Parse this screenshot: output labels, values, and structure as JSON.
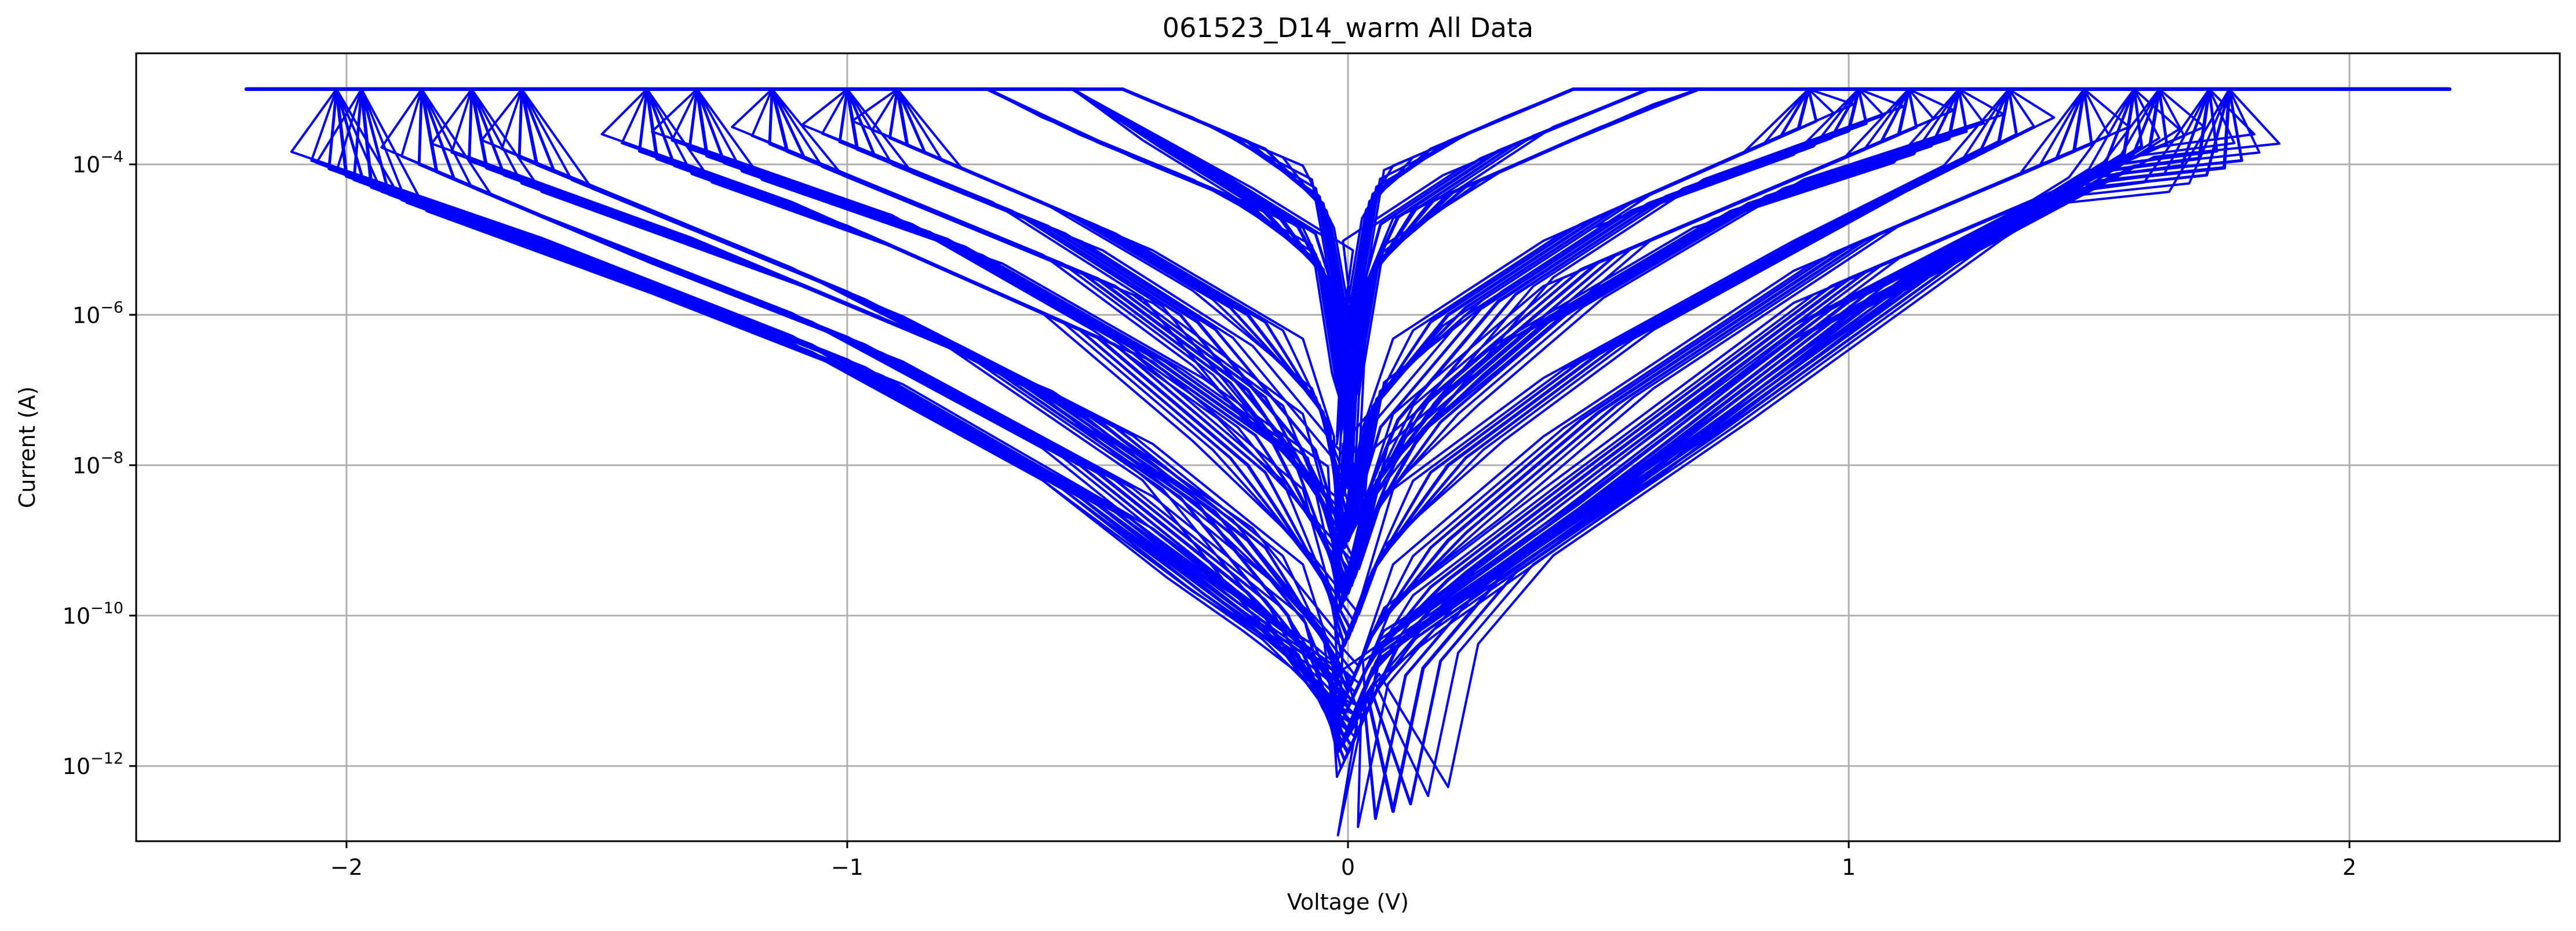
{
  "chart_data": {
    "type": "line",
    "title": "061523_D14_warm All Data",
    "xlabel": "Voltage (V)",
    "ylabel": "Current (A)",
    "yscale": "log",
    "xlim": [
      -2.42,
      2.42
    ],
    "ylim": [
      1e-13,
      0.003
    ],
    "grid": true,
    "x_ticks": [
      {
        "value": -2,
        "label": "−2"
      },
      {
        "value": -1,
        "label": "−1"
      },
      {
        "value": 0,
        "label": "0"
      },
      {
        "value": 1,
        "label": "1"
      },
      {
        "value": 2,
        "label": "2"
      }
    ],
    "y_ticks": [
      {
        "value": 1e-12,
        "base": "10",
        "exp": "−12"
      },
      {
        "value": 1e-10,
        "base": "10",
        "exp": "−10"
      },
      {
        "value": 1e-08,
        "base": "10",
        "exp": "−8"
      },
      {
        "value": 1e-06,
        "base": "10",
        "exp": "−6"
      },
      {
        "value": 0.0001,
        "base": "10",
        "exp": "−4"
      }
    ],
    "compliance_current": 0.001,
    "series_color": "#0000ff",
    "series": [
      {
        "color": "#0000ff",
        "x": [
          -2.2,
          -2.02,
          -2.0,
          -1.5,
          -1.0,
          -0.5,
          -0.25,
          -0.1,
          -0.05,
          0.0,
          0.05,
          0.1,
          0.25,
          0.5,
          1.0,
          1.5,
          1.75,
          1.76,
          2.2
        ],
        "y": [
          0.001,
          0.001,
          7e-05,
          5e-06,
          2.5e-07,
          3e-09,
          1.5e-10,
          3e-11,
          6e-12,
          1.5e-12,
          8e-12,
          4e-11,
          2e-10,
          3e-09,
          1e-06,
          6e-05,
          9e-05,
          0.001,
          0.001
        ]
      },
      {
        "color": "#0000ff",
        "x": [
          -2.2,
          -1.97,
          -1.95,
          -1.5,
          -1.0,
          -0.5,
          -0.2,
          -0.05,
          0.0,
          0.05,
          0.2,
          0.5,
          1.0,
          1.5,
          1.7,
          1.72,
          2.2
        ],
        "y": [
          0.001,
          0.001,
          5e-05,
          4e-06,
          2e-07,
          3e-09,
          1e-10,
          1e-11,
          3e-12,
          2e-11,
          1.5e-10,
          4e-09,
          1.5e-06,
          8e-05,
          0.00012,
          0.001,
          0.001
        ]
      },
      {
        "color": "#0000ff",
        "x": [
          -2.2,
          -1.85,
          -1.82,
          -1.5,
          -1.0,
          -0.5,
          -0.2,
          -0.05,
          0.0,
          0.05,
          0.2,
          0.5,
          1.0,
          1.6,
          1.62,
          2.2
        ],
        "y": [
          0.001,
          0.001,
          8e-05,
          1e-05,
          5e-07,
          8e-09,
          2e-10,
          2e-11,
          6e-12,
          3e-11,
          3e-10,
          1e-08,
          3e-06,
          0.00015,
          0.001,
          0.001
        ]
      },
      {
        "color": "#0000ff",
        "x": [
          -2.2,
          -1.65,
          -1.62,
          -1.0,
          -0.5,
          -0.2,
          -0.05,
          0.0,
          0.05,
          0.2,
          0.5,
          1.0,
          1.45,
          1.47,
          2.2
        ],
        "y": [
          0.001,
          0.001,
          0.0001,
          2e-06,
          4e-08,
          1e-09,
          5e-11,
          1e-11,
          6e-11,
          1e-09,
          5e-08,
          8e-06,
          0.00015,
          0.001,
          0.001
        ]
      },
      {
        "color": "#0000ff",
        "x": [
          -2.2,
          -1.4,
          -1.38,
          -1.0,
          -0.5,
          -0.2,
          -0.05,
          0.0,
          0.05,
          0.2,
          0.5,
          1.0,
          1.3,
          1.32,
          2.2
        ],
        "y": [
          0.001,
          0.001,
          0.00012,
          1.5e-05,
          5e-07,
          1e-08,
          3e-10,
          5e-11,
          4e-10,
          1e-08,
          3e-07,
          2e-05,
          0.0002,
          0.001,
          0.001
        ]
      },
      {
        "color": "#0000ff",
        "x": [
          -2.2,
          -1.15,
          -1.12,
          -0.5,
          -0.2,
          -0.05,
          0.0,
          0.05,
          0.2,
          0.5,
          1.1,
          1.12,
          2.2
        ],
        "y": [
          0.001,
          0.001,
          0.00015,
          3e-06,
          1e-07,
          3e-09,
          2e-10,
          5e-09,
          1e-07,
          5e-06,
          0.00025,
          0.001,
          0.001
        ]
      },
      {
        "color": "#0000ff",
        "x": [
          -2.2,
          -0.9,
          -0.88,
          -0.5,
          -0.2,
          -0.05,
          0.0,
          0.05,
          0.2,
          0.5,
          0.9,
          0.92,
          2.2
        ],
        "y": [
          0.001,
          0.001,
          0.00018,
          1.5e-05,
          1e-06,
          5e-08,
          1e-09,
          6e-08,
          1e-06,
          2e-05,
          0.0003,
          0.001,
          0.001
        ]
      },
      {
        "color": "#0000ff",
        "x": [
          -2.2,
          -0.72,
          -0.5,
          -0.2,
          -0.05,
          -0.01,
          0.0,
          0.01,
          0.05,
          0.2,
          0.5,
          0.7,
          2.2
        ],
        "y": [
          0.001,
          0.001,
          0.0002,
          3e-05,
          4e-06,
          8e-08,
          5e-09,
          1e-07,
          4e-06,
          4e-05,
          0.0003,
          0.001,
          0.001
        ]
      },
      {
        "color": "#0000ff",
        "x": [
          -2.2,
          -0.45,
          -0.2,
          -0.05,
          -0.01,
          0.0,
          0.01,
          0.05,
          0.2,
          0.45,
          2.2
        ],
        "y": [
          0.001,
          0.001,
          0.0002,
          3e-05,
          1e-06,
          5e-08,
          1e-06,
          4e-05,
          0.0002,
          0.001,
          0.001
        ]
      },
      {
        "color": "#0000ff",
        "x": [
          -2.2,
          -0.55,
          -0.3,
          -0.1,
          -0.03,
          0.0,
          0.03,
          0.1,
          0.3,
          0.6,
          2.2
        ],
        "y": [
          0.001,
          0.001,
          0.0001,
          1.5e-05,
          2e-06,
          4e-08,
          2e-06,
          2e-05,
          0.00015,
          0.001,
          0.001
        ]
      },
      {
        "color": "#0000ff",
        "x": [
          -2.2,
          -1.3,
          -1.28,
          -0.8,
          -0.4,
          -0.15,
          -0.05,
          0.0,
          0.05,
          0.15,
          0.4,
          0.8,
          1.2,
          1.22,
          2.2
        ],
        "y": [
          0.001,
          0.001,
          0.00013,
          1e-05,
          3e-07,
          2e-08,
          1e-09,
          2e-10,
          2e-09,
          3e-08,
          8e-07,
          3e-05,
          0.00022,
          0.001,
          0.001
        ]
      },
      {
        "color": "#0000ff",
        "x": [
          -2.2,
          -1.0,
          -0.98,
          -0.6,
          -0.3,
          -0.1,
          0.0,
          0.1,
          0.3,
          0.6,
          1.0,
          1.02,
          2.2
        ],
        "y": [
          0.001,
          0.001,
          0.00016,
          1.5e-05,
          8e-07,
          2e-08,
          1e-09,
          4e-08,
          1.5e-06,
          3e-05,
          0.00028,
          0.001,
          0.001
        ]
      },
      {
        "color": "#0000ff",
        "x": [
          -2.2,
          -1.75,
          -1.72,
          -1.2,
          -0.7,
          -0.3,
          -0.12,
          -0.04,
          0.0,
          0.04,
          0.09,
          0.15,
          0.3,
          0.7,
          1.2,
          1.55,
          1.57,
          2.2
        ],
        "y": [
          0.001,
          0.001,
          9e-05,
          5e-06,
          2e-07,
          3e-09,
          1e-10,
          5e-12,
          3e-12,
          8e-12,
          2.5e-13,
          2e-11,
          3e-10,
          2e-08,
          5e-06,
          0.00014,
          0.001,
          0.001
        ]
      }
    ]
  }
}
